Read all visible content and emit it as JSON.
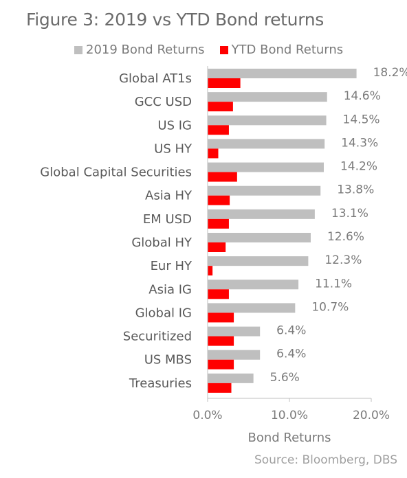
{
  "chart_data": {
    "type": "bar",
    "orientation": "horizontal",
    "title": "Figure 3: 2019 vs YTD Bond returns",
    "categories": [
      "Global AT1s",
      "GCC USD",
      "US IG",
      "US HY",
      "Global Capital Securities",
      "Asia HY",
      "EM USD",
      "Global HY",
      "Eur HY",
      "Asia IG",
      "Global IG",
      "Securitized",
      "US MBS",
      "Treasuries"
    ],
    "series": [
      {
        "name": "2019 Bond Returns",
        "color": "#bfbfbf",
        "values": [
          18.2,
          14.6,
          14.5,
          14.3,
          14.2,
          13.8,
          13.1,
          12.6,
          12.3,
          11.1,
          10.7,
          6.4,
          6.4,
          5.6
        ],
        "data_labels": [
          "18.2%",
          "14.6%",
          "14.5%",
          "14.3%",
          "14.2%",
          "13.8%",
          "13.1%",
          "12.6%",
          "12.3%",
          "11.1%",
          "10.7%",
          "6.4%",
          "6.4%",
          "5.6%"
        ]
      },
      {
        "name": "YTD Bond Returns",
        "color": "#ff0000",
        "values": [
          4.0,
          3.1,
          2.6,
          1.3,
          3.6,
          2.7,
          2.6,
          2.2,
          0.6,
          2.6,
          3.2,
          3.2,
          3.2,
          2.9
        ]
      }
    ],
    "xlabel": "Bond Returns",
    "ylabel": "",
    "xlim": [
      0,
      20
    ],
    "xticks": [
      "0.0%",
      "10.0%",
      "20.0%"
    ],
    "grid": false,
    "legend_position": "top"
  },
  "source": "Source: Bloomberg, DBS"
}
